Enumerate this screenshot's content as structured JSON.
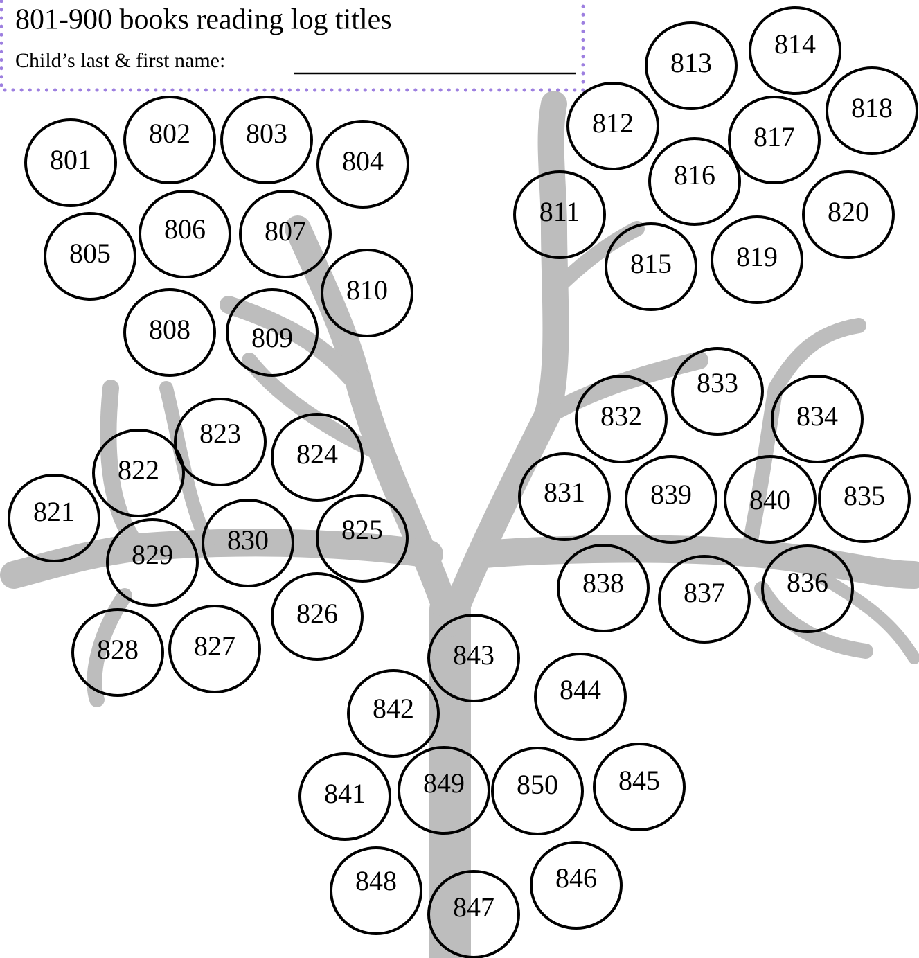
{
  "header": {
    "title": "801-900 books reading log titles",
    "name_label": "Child’s last & first name:"
  },
  "circles": [
    "801",
    "802",
    "803",
    "804",
    "805",
    "806",
    "807",
    "808",
    "809",
    "810",
    "811",
    "812",
    "813",
    "814",
    "815",
    "816",
    "817",
    "818",
    "819",
    "820",
    "821",
    "822",
    "823",
    "824",
    "825",
    "826",
    "827",
    "828",
    "829",
    "830",
    "831",
    "832",
    "833",
    "834",
    "835",
    "836",
    "837",
    "838",
    "839",
    "840",
    "841",
    "842",
    "843",
    "844",
    "845",
    "846",
    "847",
    "848",
    "849",
    "850"
  ]
}
